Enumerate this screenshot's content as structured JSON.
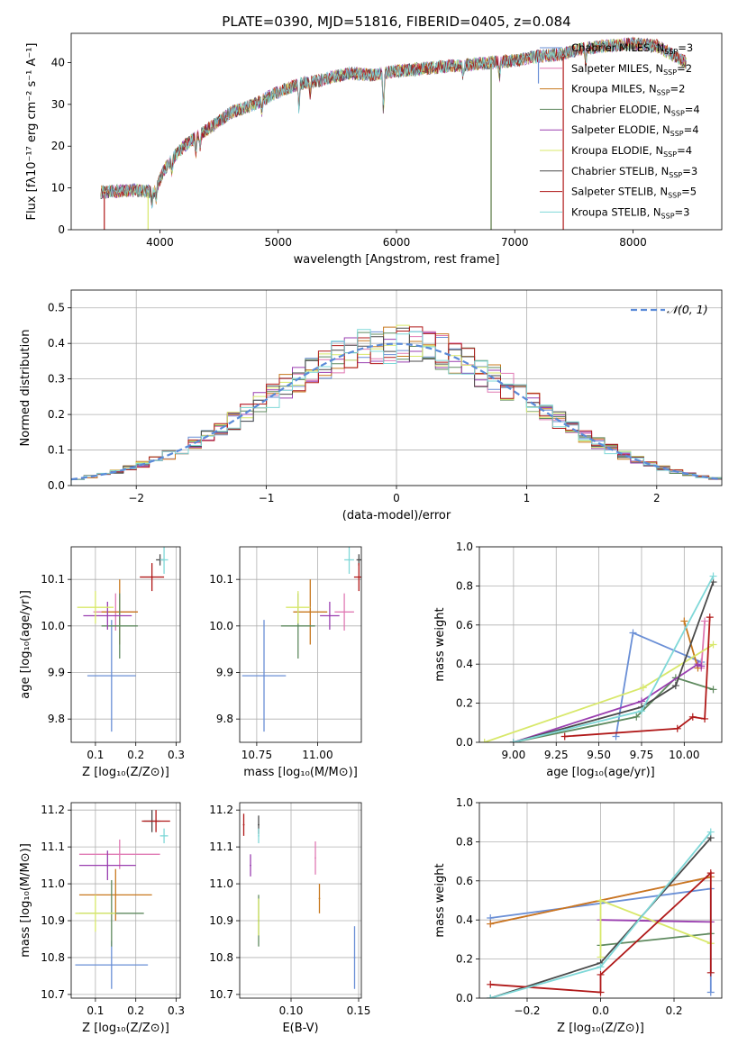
{
  "figure_title": "PLATE=0390, MJD=51816, FIBERID=0405, z=0.084",
  "colors": {
    "chabrier_miles": "#6a8fd6",
    "salpeter_miles": "#e07ab4",
    "kroupa_miles": "#c8781e",
    "chabrier_elodie": "#5f8a5f",
    "salpeter_elodie": "#9a3fb0",
    "kroupa_elodie": "#d8e86a",
    "chabrier_stelib": "#4a4a4a",
    "salpeter_stelib": "#b01818",
    "kroupa_stelib": "#7fd8d8",
    "gauss": "#5a8ad8",
    "grid": "#b0b0b0"
  },
  "chart_data": [
    {
      "id": "spectrum",
      "type": "line",
      "xlabel": "wavelength [Angstrom, rest frame]",
      "ylabel": "Flux [fλ10⁻¹⁷ erg cm⁻² s⁻¹ A⁻¹]",
      "xlim": [
        3250,
        8750
      ],
      "ylim": [
        0,
        47
      ],
      "xticks": [
        "4000",
        "5000",
        "6000",
        "7000",
        "8000"
      ],
      "yticks": [
        "0",
        "10",
        "20",
        "30",
        "40"
      ],
      "grid": false,
      "legend_position": "top-right",
      "legend": [
        {
          "name": "Chabrier MILES, N",
          "sub": "SSP",
          "tail": "=3",
          "color_key": "chabrier_miles"
        },
        {
          "name": "Salpeter MILES, N",
          "sub": "SSP",
          "tail": "=2",
          "color_key": "salpeter_miles"
        },
        {
          "name": "Kroupa MILES, N",
          "sub": "SSP",
          "tail": "=2",
          "color_key": "kroupa_miles"
        },
        {
          "name": "Chabrier ELODIE, N",
          "sub": "SSP",
          "tail": "=4",
          "color_key": "chabrier_elodie"
        },
        {
          "name": "Salpeter ELODIE, N",
          "sub": "SSP",
          "tail": "=4",
          "color_key": "salpeter_elodie"
        },
        {
          "name": "Kroupa ELODIE, N",
          "sub": "SSP",
          "tail": "=4",
          "color_key": "kroupa_elodie"
        },
        {
          "name": "Chabrier STELIB, N",
          "sub": "SSP",
          "tail": "=3",
          "color_key": "chabrier_stelib"
        },
        {
          "name": "Salpeter STELIB, N",
          "sub": "SSP",
          "tail": "=5",
          "color_key": "salpeter_stelib"
        },
        {
          "name": "Kroupa STELIB, N",
          "sub": "SSP",
          "tail": "=3",
          "color_key": "kroupa_stelib"
        }
      ],
      "continuum": [
        [
          3500,
          9
        ],
        [
          3800,
          9.5
        ],
        [
          3950,
          9
        ],
        [
          4050,
          15
        ],
        [
          4200,
          20
        ],
        [
          4400,
          24
        ],
        [
          4600,
          28
        ],
        [
          4800,
          30
        ],
        [
          5000,
          33
        ],
        [
          5200,
          35
        ],
        [
          5400,
          36
        ],
        [
          5600,
          37.5
        ],
        [
          5800,
          37
        ],
        [
          6000,
          38
        ],
        [
          6200,
          38.5
        ],
        [
          6400,
          39
        ],
        [
          6600,
          39.5
        ],
        [
          6800,
          40
        ],
        [
          7000,
          40.5
        ],
        [
          7200,
          41.5
        ],
        [
          7400,
          42
        ],
        [
          7600,
          43.5
        ],
        [
          7800,
          44
        ],
        [
          8000,
          44.5
        ],
        [
          8200,
          44
        ],
        [
          8450,
          40
        ]
      ],
      "absorption_lines": [
        [
          3934,
          3
        ],
        [
          3969,
          3
        ],
        [
          4102,
          3
        ],
        [
          4305,
          4
        ],
        [
          4340,
          3
        ],
        [
          4861,
          3
        ],
        [
          5175,
          6
        ],
        [
          5270,
          3
        ],
        [
          5890,
          10
        ],
        [
          6563,
          3
        ],
        [
          6870,
          4
        ],
        [
          7600,
          4
        ]
      ],
      "model_cutoffs": [
        {
          "color_key": "salpeter_stelib",
          "x": 3530,
          "y_drop": 0
        },
        {
          "color_key": "kroupa_elodie",
          "x": 3900,
          "y_drop": 0
        },
        {
          "color_key": "kroupa_miles",
          "x": 6800,
          "y_drop": 0
        },
        {
          "color_key": "chabrier_elodie",
          "x": 6800,
          "y_drop": 0
        },
        {
          "color_key": "salpeter_stelib",
          "x": 7410,
          "y_drop": 0
        },
        {
          "color_key": "chabrier_miles",
          "x": 7200,
          "y_drop": 35
        }
      ]
    },
    {
      "id": "residuals",
      "type": "histogram",
      "xlabel": "(data-model)/error",
      "ylabel": "Normed distribution",
      "xlim": [
        -2.5,
        2.5
      ],
      "ylim": [
        0,
        0.55
      ],
      "xticks": [
        "−2",
        "−1",
        "0",
        "1",
        "2"
      ],
      "yticks": [
        "0.0",
        "0.1",
        "0.2",
        "0.3",
        "0.4",
        "0.5"
      ],
      "grid": true,
      "legend_position": "top-right",
      "gauss_label": "𝒩(0, 1)",
      "gauss_mean": 0,
      "gauss_sigma": 1,
      "bin_width": 0.1,
      "bin_start": -2.5,
      "bins": 50
    },
    {
      "id": "age_vs_Z",
      "type": "scatter",
      "xlabel": "Z [log₁₀(Z/Z⊙)]",
      "ylabel": "age  [log₁₀(age/yr)]",
      "xlim": [
        0.04,
        0.31
      ],
      "ylim": [
        9.75,
        10.17
      ],
      "xticks": [
        "0.1",
        "0.2",
        "0.3"
      ],
      "yticks": [
        "9.8",
        "9.9",
        "10.0",
        "10.1"
      ],
      "grid": true,
      "points": [
        {
          "color_key": "chabrier_miles",
          "x": 0.14,
          "xerr": 0.06,
          "y": 9.893,
          "yerr": 0.12
        },
        {
          "color_key": "salpeter_miles",
          "x": 0.15,
          "xerr": 0.055,
          "y": 10.03,
          "yerr": 0.04
        },
        {
          "color_key": "kroupa_miles",
          "x": 0.16,
          "xerr": 0.045,
          "y": 10.03,
          "yerr": 0.07
        },
        {
          "color_key": "chabrier_elodie",
          "x": 0.16,
          "xerr": 0.045,
          "y": 10.0,
          "yerr": 0.07
        },
        {
          "color_key": "salpeter_elodie",
          "x": 0.13,
          "xerr": 0.06,
          "y": 10.022,
          "yerr": 0.03
        },
        {
          "color_key": "kroupa_elodie",
          "x": 0.1,
          "xerr": 0.045,
          "y": 10.04,
          "yerr": 0.035
        },
        {
          "color_key": "chabrier_stelib",
          "x": 0.26,
          "xerr": 0.01,
          "y": 10.142,
          "yerr": 0.012
        },
        {
          "color_key": "salpeter_stelib",
          "x": 0.24,
          "xerr": 0.03,
          "y": 10.105,
          "yerr": 0.03
        },
        {
          "color_key": "kroupa_stelib",
          "x": 0.27,
          "xerr": 0.01,
          "y": 10.142,
          "yerr": 0.03
        }
      ]
    },
    {
      "id": "age_vs_mass",
      "type": "scatter",
      "xlabel": "mass [log₁₀(M/M⊙)]",
      "ylabel": "",
      "xlim": [
        10.68,
        11.18
      ],
      "ylim": [
        9.75,
        10.17
      ],
      "xticks": [
        "10.75",
        "11.00"
      ],
      "yticks": [
        "9.8",
        "9.9",
        "10.0",
        "10.1"
      ],
      "grid": true,
      "points": [
        {
          "color_key": "chabrier_miles",
          "x": 10.78,
          "xerr": 0.09,
          "y": 9.893,
          "yerr": 0.12
        },
        {
          "color_key": "salpeter_miles",
          "x": 11.11,
          "xerr": 0.04,
          "y": 10.03,
          "yerr": 0.04
        },
        {
          "color_key": "kroupa_miles",
          "x": 10.97,
          "xerr": 0.07,
          "y": 10.03,
          "yerr": 0.07
        },
        {
          "color_key": "chabrier_elodie",
          "x": 10.92,
          "xerr": 0.07,
          "y": 10.0,
          "yerr": 0.07
        },
        {
          "color_key": "salpeter_elodie",
          "x": 11.05,
          "xerr": 0.04,
          "y": 10.022,
          "yerr": 0.03
        },
        {
          "color_key": "kroupa_elodie",
          "x": 10.92,
          "xerr": 0.05,
          "y": 10.04,
          "yerr": 0.035
        },
        {
          "color_key": "chabrier_stelib",
          "x": 11.17,
          "xerr": 0.01,
          "y": 10.142,
          "yerr": 0.012
        },
        {
          "color_key": "salpeter_stelib",
          "x": 11.17,
          "xerr": 0.02,
          "y": 10.105,
          "yerr": 0.03
        },
        {
          "color_key": "kroupa_stelib",
          "x": 11.13,
          "xerr": 0.02,
          "y": 10.142,
          "yerr": 0.03
        }
      ]
    },
    {
      "id": "weight_vs_age",
      "type": "line",
      "xlabel": "age  [log₁₀(age/yr)]",
      "ylabel": "mass weight",
      "xlim": [
        8.8,
        10.22
      ],
      "ylim": [
        0,
        1.0
      ],
      "xticks": [
        "9.00",
        "9.25",
        "9.50",
        "9.75",
        "10.00"
      ],
      "yticks": [
        "0.0",
        "0.2",
        "0.4",
        "0.6",
        "0.8",
        "1.0"
      ],
      "grid": true,
      "series": [
        {
          "color_key": "chabrier_miles",
          "x": [
            9.6,
            9.7,
            10.1
          ],
          "y": [
            0.03,
            0.56,
            0.41
          ]
        },
        {
          "color_key": "salpeter_miles",
          "x": [
            10.1,
            10.12
          ],
          "y": [
            0.38,
            0.62
          ]
        },
        {
          "color_key": "kroupa_miles",
          "x": [
            10.0,
            10.08
          ],
          "y": [
            0.62,
            0.38
          ]
        },
        {
          "color_key": "chabrier_elodie",
          "x": [
            9.0,
            9.72,
            9.95,
            10.17
          ],
          "y": [
            0.0,
            0.13,
            0.33,
            0.27
          ]
        },
        {
          "color_key": "salpeter_elodie",
          "x": [
            9.0,
            9.75,
            10.08,
            10.1
          ],
          "y": [
            0.0,
            0.21,
            0.4,
            0.39
          ]
        },
        {
          "color_key": "kroupa_elodie",
          "x": [
            8.83,
            9.76,
            10.17
          ],
          "y": [
            0.0,
            0.28,
            0.5
          ]
        },
        {
          "color_key": "chabrier_stelib",
          "x": [
            9.0,
            9.75,
            9.95,
            10.17
          ],
          "y": [
            0.0,
            0.18,
            0.29,
            0.82
          ]
        },
        {
          "color_key": "salpeter_stelib",
          "x": [
            9.3,
            9.96,
            10.05,
            10.12,
            10.15
          ],
          "y": [
            0.03,
            0.07,
            0.13,
            0.12,
            0.64
          ]
        },
        {
          "color_key": "kroupa_stelib",
          "x": [
            9.0,
            9.75,
            10.17
          ],
          "y": [
            0.0,
            0.16,
            0.85
          ]
        }
      ]
    },
    {
      "id": "mass_vs_Z",
      "type": "scatter",
      "xlabel": "Z [log₁₀(Z/Z⊙)]",
      "ylabel": "mass [log₁₀(M/M⊙)]",
      "xlim": [
        0.04,
        0.31
      ],
      "ylim": [
        10.69,
        11.22
      ],
      "xticks": [
        "0.1",
        "0.2",
        "0.3"
      ],
      "yticks": [
        "10.7",
        "10.8",
        "10.9",
        "11.0",
        "11.1",
        "11.2"
      ],
      "grid": true,
      "points": [
        {
          "color_key": "chabrier_miles",
          "x": 0.14,
          "xerr": 0.09,
          "y": 10.78,
          "yerr": 0.065
        },
        {
          "color_key": "salpeter_miles",
          "x": 0.16,
          "xerr": 0.1,
          "y": 11.08,
          "yerr": 0.04
        },
        {
          "color_key": "kroupa_miles",
          "x": 0.15,
          "xerr": 0.09,
          "y": 10.97,
          "yerr": 0.07
        },
        {
          "color_key": "chabrier_elodie",
          "x": 0.14,
          "xerr": 0.08,
          "y": 10.92,
          "yerr": 0.09
        },
        {
          "color_key": "salpeter_elodie",
          "x": 0.13,
          "xerr": 0.07,
          "y": 11.05,
          "yerr": 0.04
        },
        {
          "color_key": "kroupa_elodie",
          "x": 0.1,
          "xerr": 0.05,
          "y": 10.92,
          "yerr": 0.05
        },
        {
          "color_key": "chabrier_stelib",
          "x": 0.24,
          "xerr": 0.02,
          "y": 11.17,
          "yerr": 0.03
        },
        {
          "color_key": "salpeter_stelib",
          "x": 0.25,
          "xerr": 0.035,
          "y": 11.17,
          "yerr": 0.03
        },
        {
          "color_key": "kroupa_stelib",
          "x": 0.27,
          "xerr": 0.01,
          "y": 11.13,
          "yerr": 0.02
        }
      ]
    },
    {
      "id": "mass_vs_ebv",
      "type": "scatter",
      "xlabel": "E(B-V)",
      "ylabel": "",
      "xlim": [
        0.062,
        0.152
      ],
      "ylim": [
        10.69,
        11.22
      ],
      "xticks": [
        "0.10",
        "0.15"
      ],
      "yticks": [
        "10.7",
        "10.8",
        "10.9",
        "11.0",
        "11.1",
        "11.2"
      ],
      "grid": true,
      "points": [
        {
          "color_key": "chabrier_miles",
          "x": 0.147,
          "xerr": 0,
          "y": 10.8,
          "yerr": 0.085
        },
        {
          "color_key": "salpeter_miles",
          "x": 0.118,
          "xerr": 0,
          "y": 11.07,
          "yerr": 0.045
        },
        {
          "color_key": "kroupa_miles",
          "x": 0.121,
          "xerr": 0,
          "y": 10.96,
          "yerr": 0.04
        },
        {
          "color_key": "chabrier_elodie",
          "x": 0.076,
          "xerr": 0,
          "y": 10.9,
          "yerr": 0.07
        },
        {
          "color_key": "salpeter_elodie",
          "x": 0.07,
          "xerr": 0,
          "y": 11.05,
          "yerr": 0.03
        },
        {
          "color_key": "kroupa_elodie",
          "x": 0.076,
          "xerr": 0,
          "y": 10.91,
          "yerr": 0.05
        },
        {
          "color_key": "chabrier_stelib",
          "x": 0.076,
          "xerr": 0,
          "y": 11.16,
          "yerr": 0.025
        },
        {
          "color_key": "salpeter_stelib",
          "x": 0.065,
          "xerr": 0,
          "y": 11.16,
          "yerr": 0.03
        },
        {
          "color_key": "kroupa_stelib",
          "x": 0.076,
          "xerr": 0,
          "y": 11.13,
          "yerr": 0.02
        }
      ]
    },
    {
      "id": "weight_vs_Z",
      "type": "line",
      "xlabel": "Z [log₁₀(Z/Z⊙)]",
      "ylabel": "mass weight",
      "xlim": [
        -0.33,
        0.33
      ],
      "ylim": [
        0,
        1.0
      ],
      "xticks": [
        "−0.2",
        "0.0",
        "0.2"
      ],
      "yticks": [
        "0.0",
        "0.2",
        "0.4",
        "0.6",
        "0.8",
        "1.0"
      ],
      "grid": true,
      "series": [
        {
          "color_key": "chabrier_miles",
          "x": [
            -0.3,
            0.3,
            0.3
          ],
          "y": [
            0.41,
            0.56,
            0.03
          ]
        },
        {
          "color_key": "salpeter_miles",
          "x": [
            -0.3,
            0.3
          ],
          "y": [
            0.38,
            0.62
          ]
        },
        {
          "color_key": "kroupa_miles",
          "x": [
            -0.3,
            0.3
          ],
          "y": [
            0.38,
            0.62
          ]
        },
        {
          "color_key": "chabrier_elodie",
          "x": [
            0.0,
            0.3
          ],
          "y": [
            0.27,
            0.33
          ]
        },
        {
          "color_key": "salpeter_elodie",
          "x": [
            0.0,
            0.3
          ],
          "y": [
            0.4,
            0.39
          ]
        },
        {
          "color_key": "kroupa_elodie",
          "x": [
            0.0,
            0.0,
            0.3
          ],
          "y": [
            0.21,
            0.5,
            0.28
          ]
        },
        {
          "color_key": "chabrier_stelib",
          "x": [
            -0.3,
            0.0,
            0.3
          ],
          "y": [
            0.0,
            0.18,
            0.82
          ]
        },
        {
          "color_key": "salpeter_stelib",
          "x": [
            -0.3,
            0.0,
            0.0,
            0.3,
            0.3
          ],
          "y": [
            0.07,
            0.03,
            0.12,
            0.64,
            0.13
          ]
        },
        {
          "color_key": "kroupa_stelib",
          "x": [
            -0.3,
            0.0,
            0.3
          ],
          "y": [
            0.0,
            0.16,
            0.85
          ]
        }
      ]
    }
  ]
}
